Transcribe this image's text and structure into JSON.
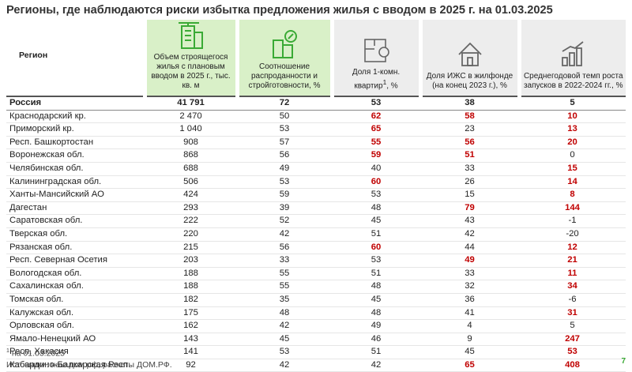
{
  "title": "Регионы, где наблюдаются риски избытка предложения жилья с вводом в 2025 г. на 01.03.2025",
  "table": {
    "columns": [
      {
        "text": "Регион"
      },
      {
        "text": "Объем строящегося жилья с плановым вводом в 2025 г., тыс. кв. м"
      },
      {
        "text": "Соотношение распроданности и стройготовности, %"
      },
      {
        "text": "Доля 1-комн. квартир",
        "sup": "1",
        "suffix": ", %"
      },
      {
        "text": "Доля ИЖС в жилфонде (на конец 2023 г.), %"
      },
      {
        "text": "Среднегодовой темп роста запусков в 2022-2024 гг., %"
      }
    ],
    "rows": [
      {
        "cells": [
          "Россия",
          "41 791",
          "72",
          "53",
          "38",
          "5"
        ],
        "red": [
          false,
          false,
          false,
          false,
          false,
          false
        ],
        "bold": true
      },
      {
        "cells": [
          "Краснодарский кр.",
          "2 470",
          "50",
          "62",
          "58",
          "10"
        ],
        "red": [
          false,
          false,
          false,
          true,
          true,
          true
        ]
      },
      {
        "cells": [
          "Приморский кр.",
          "1 040",
          "53",
          "65",
          "23",
          "13"
        ],
        "red": [
          false,
          false,
          false,
          true,
          false,
          true
        ]
      },
      {
        "cells": [
          "Респ. Башкортостан",
          "908",
          "57",
          "55",
          "56",
          "20"
        ],
        "red": [
          false,
          false,
          false,
          true,
          true,
          true
        ]
      },
      {
        "cells": [
          "Воронежская обл.",
          "868",
          "56",
          "59",
          "51",
          "0"
        ],
        "red": [
          false,
          false,
          false,
          true,
          true,
          false
        ]
      },
      {
        "cells": [
          "Челябинская обл.",
          "688",
          "49",
          "40",
          "33",
          "15"
        ],
        "red": [
          false,
          false,
          false,
          false,
          false,
          true
        ]
      },
      {
        "cells": [
          "Калининградская обл.",
          "506",
          "53",
          "60",
          "26",
          "14"
        ],
        "red": [
          false,
          false,
          false,
          true,
          false,
          true
        ]
      },
      {
        "cells": [
          "Ханты-Мансийский АО",
          "424",
          "59",
          "53",
          "15",
          "8"
        ],
        "red": [
          false,
          false,
          false,
          false,
          false,
          true
        ]
      },
      {
        "cells": [
          "Дагестан",
          "293",
          "39",
          "48",
          "79",
          "144"
        ],
        "red": [
          false,
          false,
          false,
          false,
          true,
          true
        ]
      },
      {
        "cells": [
          "Саратовская обл.",
          "222",
          "52",
          "45",
          "43",
          "-1"
        ],
        "red": [
          false,
          false,
          false,
          false,
          false,
          false
        ]
      },
      {
        "cells": [
          "Тверская обл.",
          "220",
          "42",
          "51",
          "42",
          "-20"
        ],
        "red": [
          false,
          false,
          false,
          false,
          false,
          false
        ]
      },
      {
        "cells": [
          "Рязанская обл.",
          "215",
          "56",
          "60",
          "44",
          "12"
        ],
        "red": [
          false,
          false,
          false,
          true,
          false,
          true
        ]
      },
      {
        "cells": [
          "Респ. Северная Осетия",
          "203",
          "33",
          "53",
          "49",
          "21"
        ],
        "red": [
          false,
          false,
          false,
          false,
          true,
          true
        ]
      },
      {
        "cells": [
          "Вологодская обл.",
          "188",
          "55",
          "51",
          "33",
          "11"
        ],
        "red": [
          false,
          false,
          false,
          false,
          false,
          true
        ]
      },
      {
        "cells": [
          "Сахалинская обл.",
          "188",
          "55",
          "48",
          "32",
          "34"
        ],
        "red": [
          false,
          false,
          false,
          false,
          false,
          true
        ]
      },
      {
        "cells": [
          "Томская обл.",
          "182",
          "35",
          "45",
          "36",
          "-6"
        ],
        "red": [
          false,
          false,
          false,
          false,
          false,
          false
        ]
      },
      {
        "cells": [
          "Калужская обл.",
          "175",
          "48",
          "48",
          "41",
          "31"
        ],
        "red": [
          false,
          false,
          false,
          false,
          false,
          true
        ]
      },
      {
        "cells": [
          "Орловская обл.",
          "162",
          "42",
          "49",
          "4",
          "5"
        ],
        "red": [
          false,
          false,
          false,
          false,
          false,
          false
        ]
      },
      {
        "cells": [
          "Ямало-Ненецкий АО",
          "143",
          "45",
          "46",
          "9",
          "247"
        ],
        "red": [
          false,
          false,
          false,
          false,
          false,
          true
        ]
      },
      {
        "cells": [
          "Респ. Хакасия",
          "141",
          "53",
          "51",
          "45",
          "53"
        ],
        "red": [
          false,
          false,
          false,
          false,
          false,
          true
        ]
      },
      {
        "cells": [
          "Кабардино-Балкарская Респ.",
          "92",
          "42",
          "42",
          "65",
          "408"
        ],
        "red": [
          false,
          false,
          false,
          false,
          true,
          true
        ]
      }
    ]
  },
  "footnotes": [
    {
      "mark": "1",
      "text": "на 01.03.2025"
    },
    {
      "text": "Источники: наш.дом.рф, расчеты ДОМ.РФ."
    }
  ],
  "page_number": "7"
}
